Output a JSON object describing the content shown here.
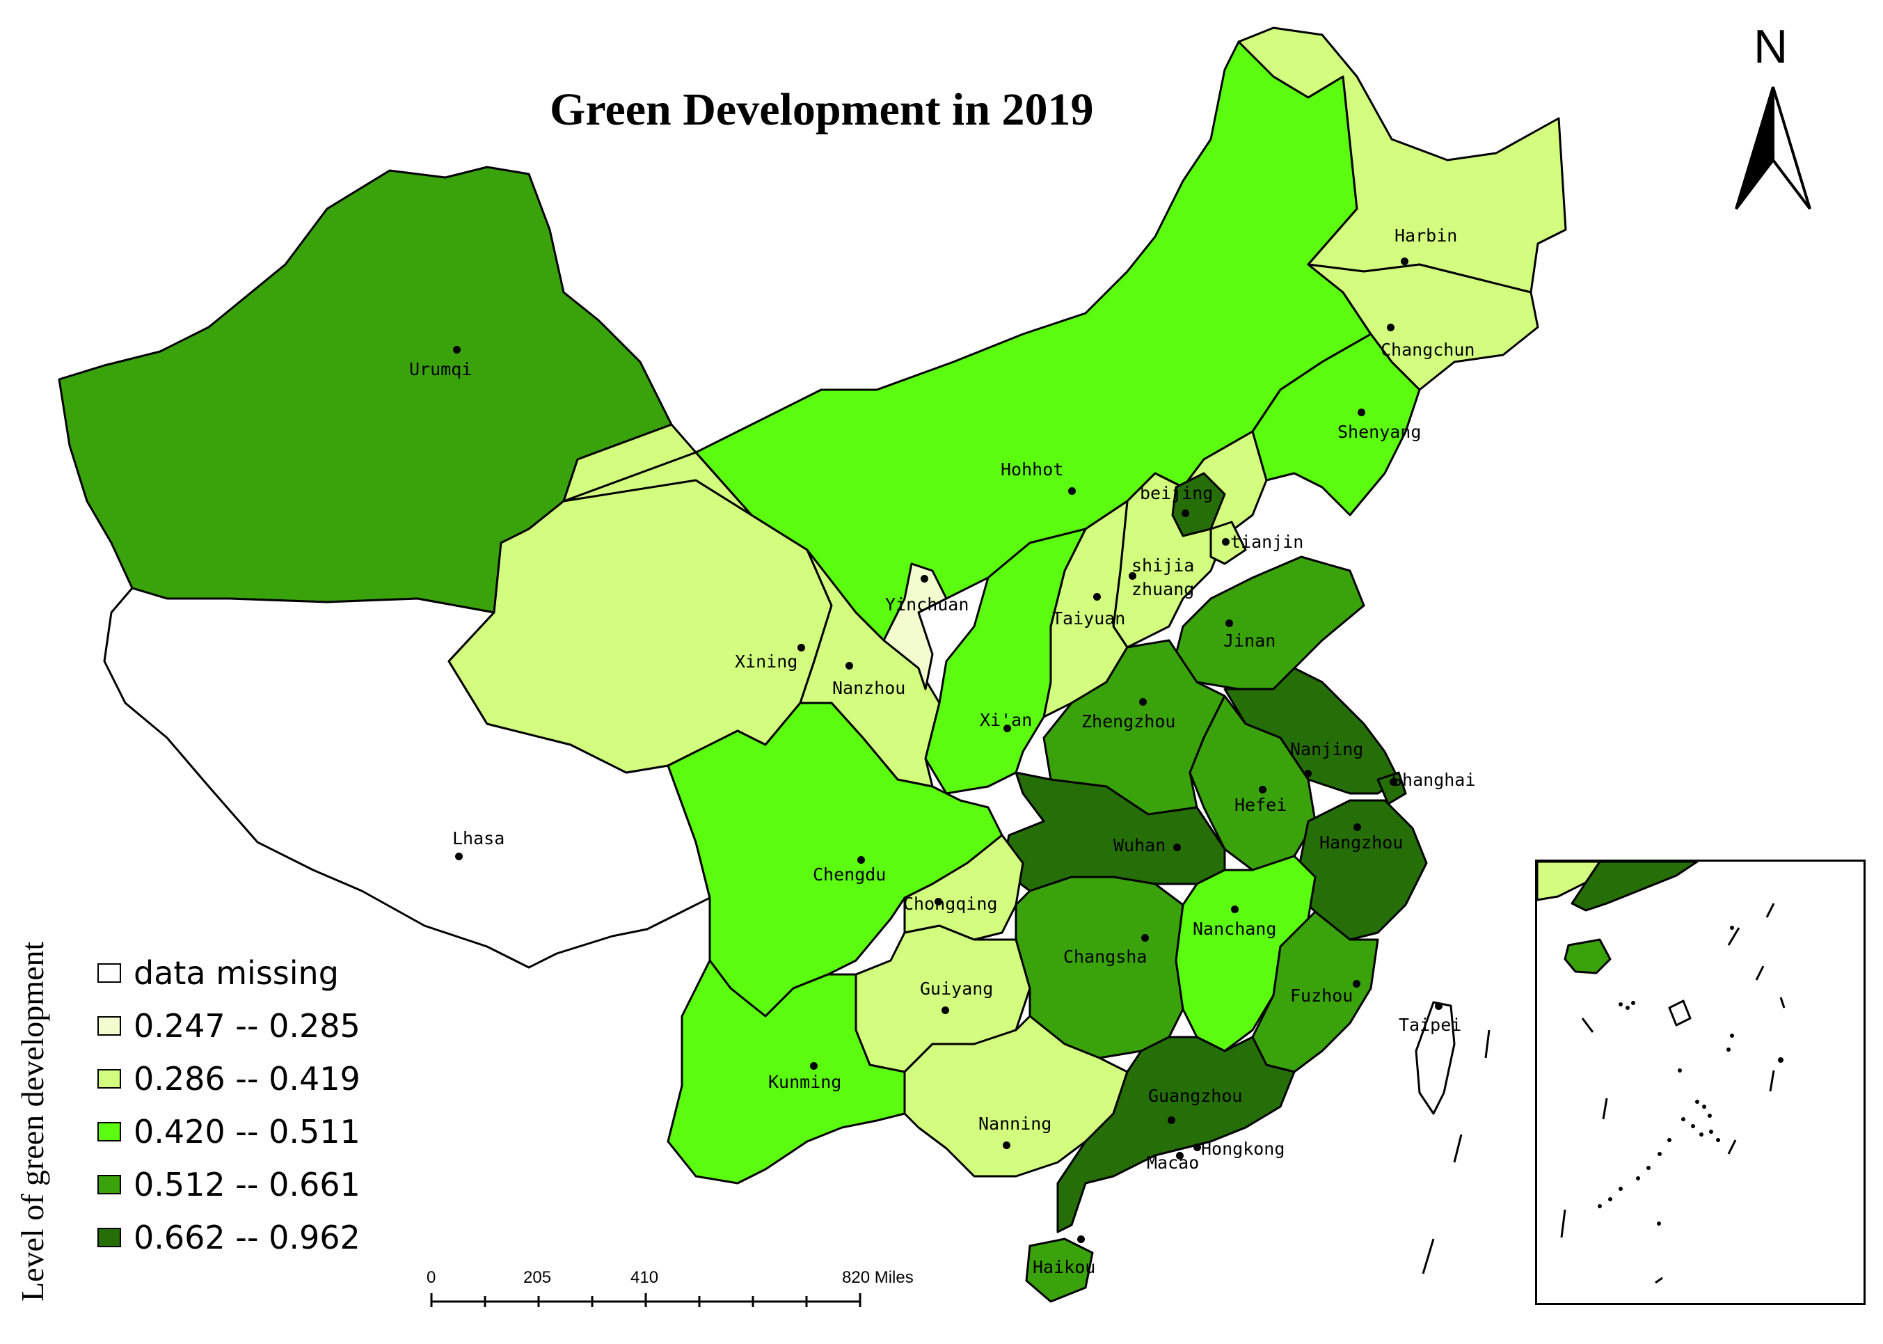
{
  "title": "Green Development in 2019",
  "north": "N",
  "legend": {
    "title": "Level of green development",
    "items": [
      {
        "label": "data missing",
        "color": "#ffffff"
      },
      {
        "label": "0.247 -- 0.285",
        "color": "#f2fccf"
      },
      {
        "label": "0.286 -- 0.419",
        "color": "#d3fd7e"
      },
      {
        "label": "0.420 -- 0.511",
        "color": "#5bfc0f"
      },
      {
        "label": "0.512 -- 0.661",
        "color": "#3aa20a"
      },
      {
        "label": "0.662 -- 0.962",
        "color": "#256e08"
      }
    ]
  },
  "scale_bar": {
    "ticks": [
      "0",
      "205",
      "410",
      "820 Miles"
    ]
  },
  "cities": [
    {
      "name": "Harbin"
    },
    {
      "name": "Changchun"
    },
    {
      "name": "Shenyang"
    },
    {
      "name": "Urumqi"
    },
    {
      "name": "Hohhot"
    },
    {
      "name": "beijing"
    },
    {
      "name": "tianjin"
    },
    {
      "name": "shijia zhuang"
    },
    {
      "name": "Yinchuan"
    },
    {
      "name": "Taiyuan"
    },
    {
      "name": "Xining"
    },
    {
      "name": "Nanzhou"
    },
    {
      "name": "Jinan"
    },
    {
      "name": "Xi'an"
    },
    {
      "name": "Zhengzhou"
    },
    {
      "name": "Nanjing"
    },
    {
      "name": "Shanghai"
    },
    {
      "name": "Hefei"
    },
    {
      "name": "Lhasa"
    },
    {
      "name": "Chengdu"
    },
    {
      "name": "Wuhan"
    },
    {
      "name": "Hangzhou"
    },
    {
      "name": "Chongqing"
    },
    {
      "name": "Nanchang"
    },
    {
      "name": "Changsha"
    },
    {
      "name": "Fuzhou"
    },
    {
      "name": "Taipei"
    },
    {
      "name": "Guiyang"
    },
    {
      "name": "Kunming"
    },
    {
      "name": "Guangzhou"
    },
    {
      "name": "Nanning"
    },
    {
      "name": "Macao"
    },
    {
      "name": "Hongkong"
    },
    {
      "name": "Haikou"
    }
  ]
}
